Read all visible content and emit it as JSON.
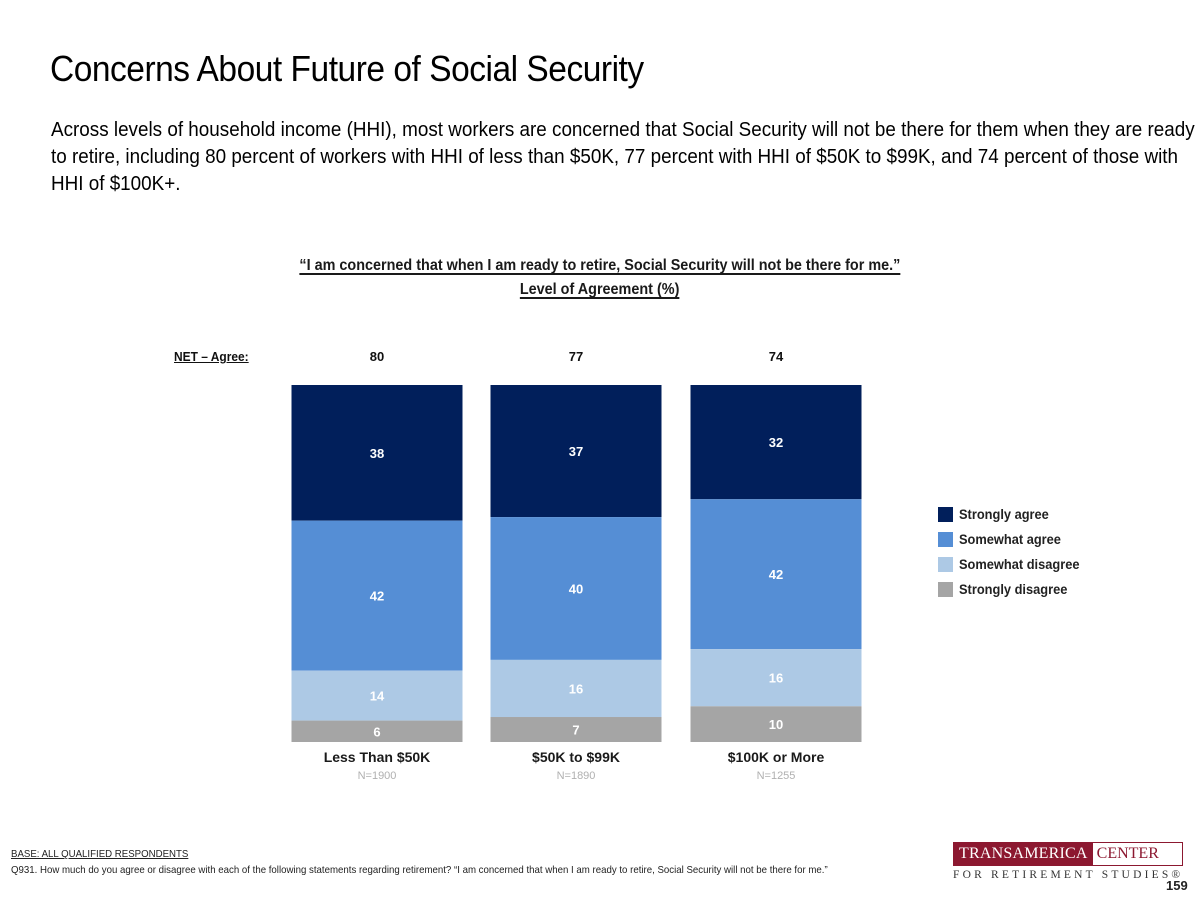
{
  "page": {
    "title": "Concerns About Future of Social Security",
    "subtitle": "Across levels of household income (HHI), most workers are concerned that Social Security will not be there for them when they are ready to retire, including 80 percent of workers with HHI of less than $50K, 77 percent with HHI of $50K to $99K, and 74 percent of those with HHI of $100K+.",
    "footnote_base": "BASE: ALL QUALIFIED RESPONDENTS",
    "footnote_question": "Q931. How much do you agree or disagree with each of the following statements regarding retirement? “I am concerned that when I am ready to retire, Social Security will not be there for me.”",
    "logo_left": "TRANSAMERICA",
    "logo_right": "CENTER",
    "logo_bottom": "FOR RETIREMENT STUDIES®",
    "page_number": "159"
  },
  "chart_data": {
    "type": "bar",
    "stacked": true,
    "title": "“I am concerned that when I am ready to retire, Social Security will not be there for me.”",
    "subtitle": "Level of Agreement (%)",
    "xlabel": "",
    "ylabel": "",
    "ylim": [
      0,
      100
    ],
    "grid": false,
    "legend_position": "right",
    "categories": [
      "Less Than $50K",
      "$50K to $99K",
      "$100K or More"
    ],
    "sample_sizes": [
      "N=1900",
      "N=1890",
      "N=1255"
    ],
    "net_label": "NET – Agree:",
    "net_agree": [
      80,
      77,
      74
    ],
    "series": [
      {
        "name": "Strongly agree",
        "color": "#011f5b",
        "values": [
          38,
          37,
          32
        ]
      },
      {
        "name": "Somewhat agree",
        "color": "#558ed5",
        "values": [
          42,
          40,
          42
        ]
      },
      {
        "name": "Somewhat disagree",
        "color": "#adc9e5",
        "values": [
          14,
          16,
          16
        ]
      },
      {
        "name": "Strongly disagree",
        "color": "#a5a5a5",
        "values": [
          6,
          7,
          10
        ]
      }
    ]
  }
}
